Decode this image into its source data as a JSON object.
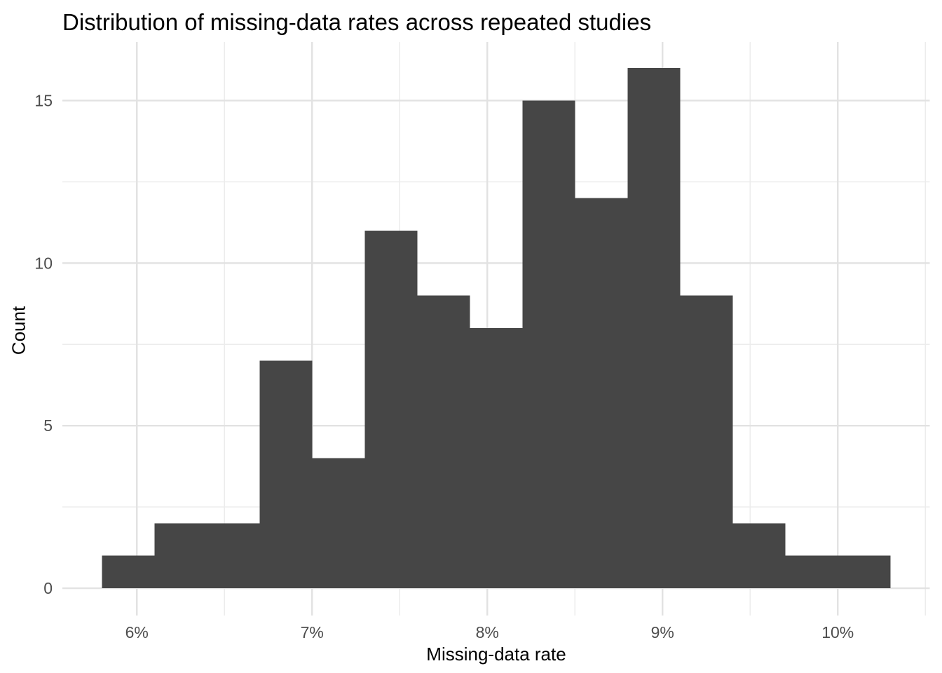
{
  "chart_data": {
    "type": "bar",
    "subtype": "histogram",
    "title": "Distribution of missing-data rates across repeated studies",
    "xlabel": "Missing-data rate",
    "ylabel": "Count",
    "bin_start_percent": 5.8,
    "bin_width_percent": 0.3,
    "bin_edges_percent": [
      5.8,
      6.1,
      6.4,
      6.7,
      7.0,
      7.3,
      7.6,
      7.9,
      8.2,
      8.5,
      8.8,
      9.1,
      9.4,
      9.7,
      10.0,
      10.3
    ],
    "counts": [
      1,
      2,
      2,
      7,
      4,
      11,
      9,
      8,
      15,
      12,
      16,
      9,
      2,
      1,
      1
    ],
    "x_ticks": [
      {
        "value": 6,
        "label": "6%"
      },
      {
        "value": 7,
        "label": "7%"
      },
      {
        "value": 8,
        "label": "8%"
      },
      {
        "value": 9,
        "label": "9%"
      },
      {
        "value": 10,
        "label": "10%"
      }
    ],
    "x_minor_ticks": [
      6.5,
      7.5,
      8.5,
      9.5,
      10.5
    ],
    "y_ticks": [
      {
        "value": 0,
        "label": "0"
      },
      {
        "value": 5,
        "label": "5"
      },
      {
        "value": 10,
        "label": "10"
      },
      {
        "value": 15,
        "label": "15"
      }
    ],
    "y_minor_ticks": [
      2.5,
      7.5,
      12.5
    ],
    "xlim": [
      5.575,
      10.525
    ],
    "ylim": [
      -0.84,
      16.8
    ],
    "grid": true,
    "legend_position": "none",
    "colors": {
      "bar_fill": "#464646",
      "background": "#ffffff",
      "grid_major": "#e2e2e2",
      "grid_minor": "#ececec",
      "tick_label": "#4d4d4d",
      "title_text": "#000000",
      "axis_title_text": "#000000"
    }
  }
}
